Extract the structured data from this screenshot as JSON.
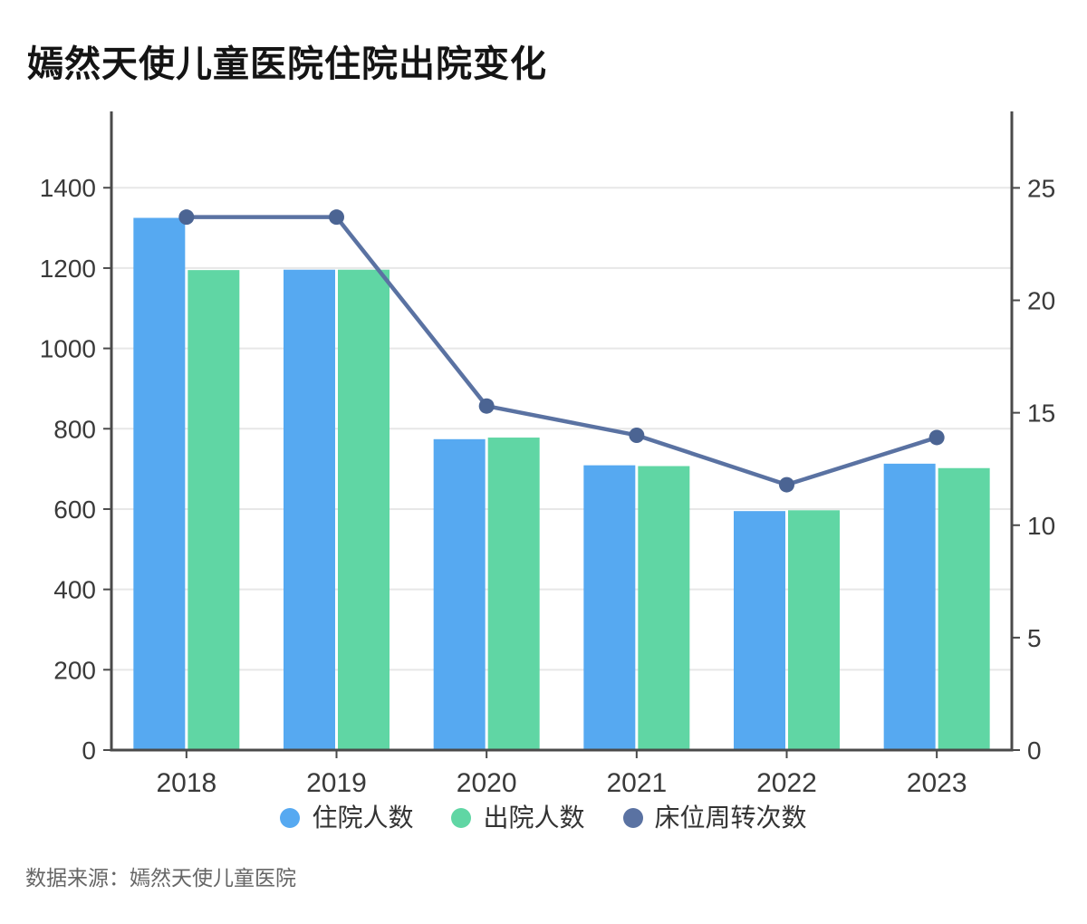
{
  "title": "嫣然天使儿童医院住院出院变化",
  "source": "数据来源：嫣然天使儿童医院",
  "colors": {
    "admissions": "#56a9f1",
    "discharges": "#60d6a4",
    "turnover": "#5a72a2",
    "turnover_dot": "#4b6493",
    "axis": "#4a4a4a",
    "grid": "#e7e7e7",
    "tick_label": "#3a3a3a",
    "title_color": "#141414",
    "source_color": "#666666",
    "background": "#ffffff"
  },
  "legend": [
    {
      "key": "admissions",
      "label": "住院人数",
      "color_key": "admissions"
    },
    {
      "key": "discharges",
      "label": "出院人数",
      "color_key": "discharges"
    },
    {
      "key": "turnover",
      "label": "床位周转次数",
      "color_key": "turnover"
    }
  ],
  "chart_data": {
    "type": "bar+line",
    "title": "嫣然天使儿童医院住院出院变化",
    "categories": [
      "2018",
      "2019",
      "2020",
      "2021",
      "2022",
      "2023"
    ],
    "series": [
      {
        "name": "住院人数",
        "type": "bar",
        "axis": "left",
        "color_key": "admissions",
        "values": [
          1325,
          1196,
          774,
          709,
          595,
          713
        ]
      },
      {
        "name": "出院人数",
        "type": "bar",
        "axis": "left",
        "color_key": "discharges",
        "values": [
          1195,
          1196,
          778,
          707,
          597,
          702
        ]
      },
      {
        "name": "床位周转次数",
        "type": "line",
        "axis": "right",
        "color_key": "turnover",
        "values": [
          23.7,
          23.7,
          15.3,
          14.0,
          11.8,
          13.9
        ]
      }
    ],
    "left_axis": {
      "ticks": [
        0,
        200,
        400,
        600,
        800,
        1000,
        1200,
        1400
      ],
      "max": 1590
    },
    "right_axis": {
      "ticks": [
        0,
        5,
        10,
        15,
        20,
        25
      ],
      "max": 28.4
    },
    "grid": true,
    "legend_position": "bottom",
    "xlabel": "",
    "ylabel_left": "",
    "ylabel_right": ""
  }
}
